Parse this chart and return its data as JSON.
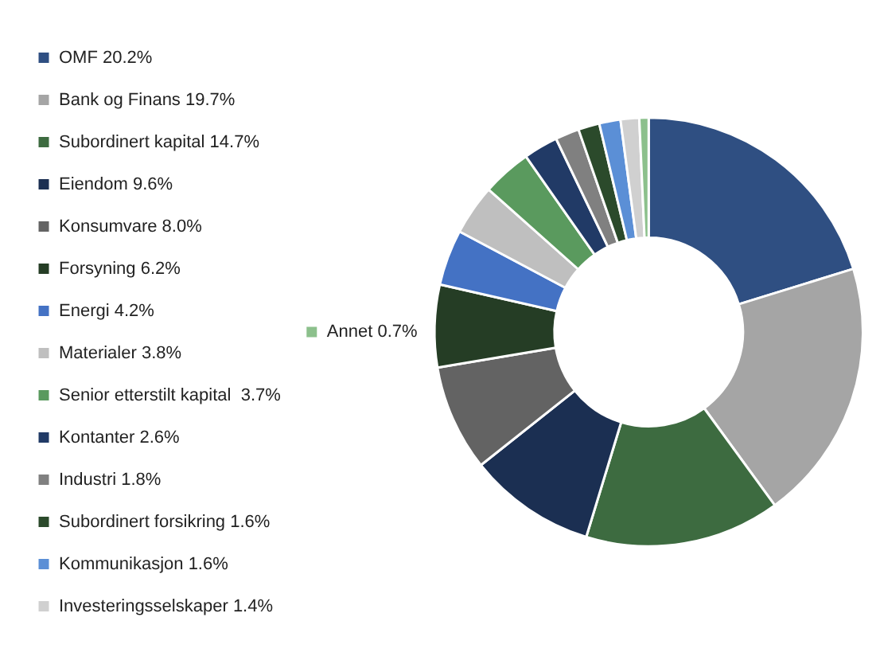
{
  "chart_data": {
    "type": "donut",
    "categories": [
      "OMF 20.2%",
      "Bank og Finans 19.7%",
      "Subordinert kapital 14.7%",
      "Eiendom 9.6%",
      "Konsumvare 8.0%",
      "Forsyning 6.2%",
      "Energi 4.2%",
      "Materialer 3.8%",
      "Senior etterstilt kapital  3.7%",
      "Kontanter 2.6%",
      "Industri 1.8%",
      "Subordinert forsikring 1.6%",
      "Kommunikasjon 1.6%",
      "Investeringsselskaper 1.4%",
      "Annet 0.7%"
    ],
    "values": [
      20.2,
      19.7,
      14.7,
      9.6,
      8.0,
      6.2,
      4.2,
      3.8,
      3.7,
      2.6,
      1.8,
      1.6,
      1.6,
      1.4,
      0.7
    ],
    "colors": [
      "#2f4f82",
      "#a5a5a5",
      "#3d6b40",
      "#1b2f52",
      "#636363",
      "#253d25",
      "#4472c4",
      "#bfbfbf",
      "#5a9a5e",
      "#213a66",
      "#808080",
      "#2b4a2b",
      "#5b8fd6",
      "#d0d0d0",
      "#8cc08c"
    ],
    "legend": "left"
  }
}
